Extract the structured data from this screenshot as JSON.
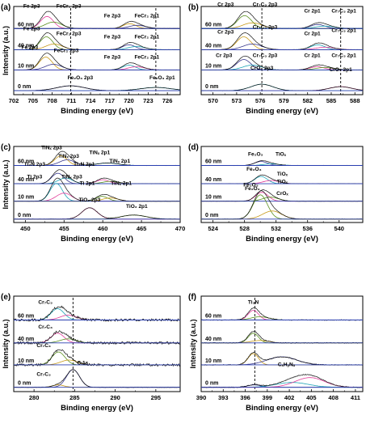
{
  "figure": {
    "ylabel": "Intensity (a.u.)",
    "xlabel": "Binding energy (eV)"
  },
  "chart_data": [
    {
      "panel": "(a)",
      "type": "line",
      "xlabel": "Binding energy (eV)",
      "ylabel": "Intensity (a.u.)",
      "xlim": [
        702,
        728
      ],
      "xticks": [
        702,
        705,
        708,
        711,
        714,
        717,
        720,
        723,
        726
      ],
      "reversed_x": false,
      "dashed_refs": [
        710.9,
        724.2
      ],
      "traces": [
        {
          "name": "60 nm",
          "label": "60 nm",
          "peaks": [
            {
              "x": 707.2,
              "w": 1.0,
              "h": 15
            },
            {
              "x": 708.2,
              "w": 1.3,
              "h": 8
            },
            {
              "x": 720.1,
              "w": 1.0,
              "h": 6
            },
            {
              "x": 721.3,
              "w": 1.3,
              "h": 4
            }
          ],
          "annotations": [
            {
              "text": "Fe 2p3",
              "x": 704.8,
              "y": 26
            },
            {
              "text": "FeCr₂ 2p3",
              "x": 710.6,
              "y": 26
            },
            {
              "text": "Fe 2p3",
              "x": 717.4,
              "y": 14
            },
            {
              "text": "FeCr₂ 2p1",
              "x": 722.8,
              "y": 14
            }
          ]
        },
        {
          "name": "40 nm",
          "label": "40 nm",
          "peaks": [
            {
              "x": 707.1,
              "w": 1.0,
              "h": 16
            },
            {
              "x": 708.3,
              "w": 1.3,
              "h": 7
            },
            {
              "x": 720.0,
              "w": 1.0,
              "h": 6
            },
            {
              "x": 721.2,
              "w": 1.3,
              "h": 4
            }
          ],
          "annotations": [
            {
              "text": "Fe 2p3",
              "x": 704.8,
              "y": 24
            },
            {
              "text": "FeCr₂ 2p3",
              "x": 710.6,
              "y": 18
            },
            {
              "text": "Fe 2p3",
              "x": 717.4,
              "y": 14
            },
            {
              "text": "FeCr₂ 2p1",
              "x": 722.8,
              "y": 14
            }
          ]
        },
        {
          "name": "10 nm",
          "label": "10 nm",
          "peaks": [
            {
              "x": 707.0,
              "w": 1.0,
              "h": 16
            },
            {
              "x": 708.2,
              "w": 1.3,
              "h": 7
            },
            {
              "x": 720.0,
              "w": 1.0,
              "h": 6
            },
            {
              "x": 721.2,
              "w": 1.3,
              "h": 4
            }
          ],
          "annotations": [
            {
              "text": "Fe 2p3",
              "x": 704.5,
              "y": 26
            },
            {
              "text": "FeCr₂ 2p3",
              "x": 710.2,
              "y": 22
            },
            {
              "text": "Fe 2p3",
              "x": 717.4,
              "y": 14
            },
            {
              "text": "FeCr₂ 2p1",
              "x": 722.8,
              "y": 14
            }
          ]
        },
        {
          "name": "0 nm",
          "label": "0 nm",
          "peaks": [
            {
              "x": 710.9,
              "w": 2.2,
              "h": 6
            },
            {
              "x": 724.2,
              "w": 2.4,
              "h": 4
            }
          ],
          "annotations": [
            {
              "text": "Fe₂O₃ 2p3",
              "x": 712.4,
              "y": 14
            },
            {
              "text": "Fe₂O₃ 2p1",
              "x": 725.2,
              "y": 14
            }
          ]
        }
      ]
    },
    {
      "panel": "(b)",
      "type": "line",
      "xlabel": "Binding energy (eV)",
      "ylabel": "",
      "xlim": [
        568.5,
        589
      ],
      "xticks": [
        570,
        573,
        576,
        579,
        582,
        585,
        588
      ],
      "reversed_x": false,
      "dashed_refs": [
        576.2,
        586.2
      ],
      "traces": [
        {
          "name": "60 nm",
          "label": "60 nm",
          "peaks": [
            {
              "x": 574.0,
              "w": 0.9,
              "h": 16
            },
            {
              "x": 575.0,
              "w": 1.2,
              "h": 7
            },
            {
              "x": 583.3,
              "w": 0.9,
              "h": 5
            },
            {
              "x": 584.2,
              "w": 1.2,
              "h": 3
            }
          ],
          "annotations": [
            {
              "text": "Cr 2p3",
              "x": 571.6,
              "y": 28
            },
            {
              "text": "Cr₇C₃ 2p3",
              "x": 576.6,
              "y": 28
            },
            {
              "text": "Cr 2p1",
              "x": 582.6,
              "y": 20
            },
            {
              "text": "Cr₇C₃ 2p1",
              "x": 586.6,
              "y": 20
            }
          ]
        },
        {
          "name": "40 nm",
          "label": "40 nm",
          "peaks": [
            {
              "x": 573.9,
              "w": 0.9,
              "h": 16
            },
            {
              "x": 575.0,
              "w": 1.2,
              "h": 7
            },
            {
              "x": 583.3,
              "w": 0.9,
              "h": 6
            },
            {
              "x": 584.2,
              "w": 1.2,
              "h": 3
            }
          ],
          "annotations": [
            {
              "text": "Cr 2p3",
              "x": 571.6,
              "y": 20
            },
            {
              "text": "Cr₇C₃ 2p3",
              "x": 576.6,
              "y": 26
            },
            {
              "text": "Cr 2p1",
              "x": 582.6,
              "y": 18
            },
            {
              "text": "Cr₇C₃ 2p1",
              "x": 586.6,
              "y": 22
            }
          ]
        },
        {
          "name": "10 nm",
          "label": "10 nm",
          "peaks": [
            {
              "x": 573.9,
              "w": 0.9,
              "h": 13
            },
            {
              "x": 575.0,
              "w": 1.2,
              "h": 6
            },
            {
              "x": 583.2,
              "w": 0.9,
              "h": 4
            },
            {
              "x": 584.2,
              "w": 1.2,
              "h": 3
            }
          ],
          "annotations": [
            {
              "text": "Cr 2p3",
              "x": 571.4,
              "y": 16
            },
            {
              "text": "Cr₇C₃ 2p3",
              "x": 576.6,
              "y": 16
            },
            {
              "text": "Cr 2p1",
              "x": 582.6,
              "y": 16
            },
            {
              "text": "Cr₇C₃ 2p1",
              "x": 586.6,
              "y": 16
            }
          ]
        },
        {
          "name": "0 nm",
          "label": "0 nm",
          "peaks": [
            {
              "x": 576.2,
              "w": 1.4,
              "h": 8
            },
            {
              "x": 586.2,
              "w": 1.4,
              "h": 5
            }
          ],
          "annotations": [
            {
              "text": "CrO₂ 2p3",
              "x": 576.2,
              "y": 26
            },
            {
              "text": "CrO₂ 2p1",
              "x": 586.2,
              "y": 24
            }
          ]
        }
      ]
    },
    {
      "panel": "(c)",
      "type": "line",
      "xlabel": "Binding energy (eV)",
      "ylabel": "Intensity (a.u.)",
      "xlim": [
        448.5,
        470
      ],
      "xticks": [
        450,
        455,
        460,
        465,
        470
      ],
      "reversed_x": false,
      "dashed_refs": [],
      "traces": [
        {
          "name": "60 nm",
          "label": "60 nm",
          "peaks": [
            {
              "x": 454.6,
              "w": 0.8,
              "h": 12
            },
            {
              "x": 455.4,
              "w": 1.0,
              "h": 7
            },
            {
              "x": 460.6,
              "w": 1.4,
              "h": 3
            }
          ],
          "annotations": [
            {
              "text": "TiNₓ 2p3",
              "x": 453.4,
              "y": 20
            },
            {
              "text": "TiNₓ 2p1",
              "x": 459.6,
              "y": 14
            }
          ]
        },
        {
          "name": "40 nm",
          "label": "40 nm",
          "peaks": [
            {
              "x": 454.2,
              "w": 0.8,
              "h": 13
            },
            {
              "x": 455.2,
              "w": 0.9,
              "h": 7
            },
            {
              "x": 460.0,
              "w": 0.8,
              "h": 5
            },
            {
              "x": 461.0,
              "w": 1.0,
              "h": 3
            }
          ],
          "annotations": [
            {
              "text": "Ti₂N 2p3",
              "x": 451.2,
              "y": 22
            },
            {
              "text": "TiNₓ 2p3",
              "x": 455.6,
              "y": 32
            },
            {
              "text": "Ti₂N 2p1",
              "x": 457.6,
              "y": 22
            },
            {
              "text": "TiNₓ 2p1",
              "x": 462.2,
              "y": 26
            }
          ]
        },
        {
          "name": "10 nm",
          "label": "10 nm",
          "peaks": [
            {
              "x": 454.0,
              "w": 0.8,
              "h": 22
            },
            {
              "x": 455.0,
              "w": 1.0,
              "h": 10
            },
            {
              "x": 459.9,
              "w": 0.8,
              "h": 6
            },
            {
              "x": 461.0,
              "w": 1.0,
              "h": 4
            }
          ],
          "annotations": [
            {
              "text": "Ti 2p3",
              "x": 451.2,
              "y": 28
            },
            {
              "text": "TiNₓ 2p3",
              "x": 456.0,
              "y": 28
            },
            {
              "text": "Ti 2p1",
              "x": 458.0,
              "y": 20
            },
            {
              "text": "TiNₓ 2p1",
              "x": 462.4,
              "y": 20
            }
          ]
        },
        {
          "name": "0 nm",
          "label": "0 nm",
          "peaks": [
            {
              "x": 458.3,
              "w": 1.0,
              "h": 14
            },
            {
              "x": 464.0,
              "w": 1.6,
              "h": 5
            }
          ],
          "annotations": [
            {
              "text": "TiO₂ 2p3",
              "x": 458.3,
              "y": 22
            },
            {
              "text": "TiO₂ 2p1",
              "x": 464.4,
              "y": 14
            }
          ]
        }
      ]
    },
    {
      "panel": "(d)",
      "type": "line",
      "xlabel": "Binding energy (eV)",
      "ylabel": "",
      "xlim": [
        522.5,
        543
      ],
      "xticks": [
        524,
        528,
        532,
        536,
        540
      ],
      "reversed_x": false,
      "dashed_refs": [],
      "traces": [
        {
          "name": "60 nm",
          "label": "60 nm",
          "peaks": [
            {
              "x": 530.1,
              "w": 0.8,
              "h": 5
            },
            {
              "x": 531.4,
              "w": 1.0,
              "h": 2
            }
          ],
          "annotations": [
            {
              "text": "Fe₂O₃",
              "x": 529.4,
              "y": 12
            },
            {
              "text": "TiOₓ",
              "x": 532.6,
              "y": 12
            }
          ]
        },
        {
          "name": "40 nm",
          "label": "40 nm",
          "peaks": [
            {
              "x": 530.1,
              "w": 0.8,
              "h": 9
            },
            {
              "x": 531.4,
              "w": 1.0,
              "h": 4
            }
          ],
          "annotations": [
            {
              "text": "Fe₂O₃",
              "x": 529.2,
              "y": 16
            },
            {
              "text": "TiOₓ",
              "x": 532.8,
              "y": 10
            }
          ]
        },
        {
          "name": "10 nm",
          "label": "10 nm",
          "peaks": [
            {
              "x": 530.2,
              "w": 0.8,
              "h": 11
            },
            {
              "x": 531.3,
              "w": 1.0,
              "h": 5
            }
          ],
          "annotations": [
            {
              "text": "Fe₂O₃",
              "x": 528.8,
              "y": 18
            },
            {
              "text": "TiOₓ",
              "x": 532.8,
              "y": 22
            }
          ]
        },
        {
          "name": "0 nm",
          "label": "0 nm",
          "peaks": [
            {
              "x": 530.0,
              "w": 0.9,
              "h": 30
            },
            {
              "x": 531.5,
              "w": 1.2,
              "h": 10
            }
          ],
          "annotations": [
            {
              "text": "Fe₂O₃",
              "x": 529.0,
              "y": 36
            },
            {
              "text": "CrOₓ",
              "x": 532.8,
              "y": 30
            }
          ]
        }
      ]
    },
    {
      "panel": "(e)",
      "type": "line",
      "xlabel": "Binding energy (eV)",
      "ylabel": "Intensity (a.u.)",
      "xlim": [
        277.5,
        298
      ],
      "xticks": [
        280,
        285,
        290,
        295
      ],
      "reversed_x": false,
      "dashed_refs": [
        284.8
      ],
      "traces": [
        {
          "name": "60 nm",
          "label": "60 nm",
          "noise": 0.25,
          "peaks": [
            {
              "x": 282.9,
              "w": 0.8,
              "h": 14
            },
            {
              "x": 284.2,
              "w": 1.0,
              "h": 6
            }
          ],
          "annotations": [
            {
              "text": "Cr₇C₃",
              "x": 281.4,
              "y": 20
            }
          ]
        },
        {
          "name": "40 nm",
          "label": "40 nm",
          "noise": 0.25,
          "peaks": [
            {
              "x": 282.9,
              "w": 0.8,
              "h": 12
            },
            {
              "x": 284.2,
              "w": 1.0,
              "h": 5
            }
          ],
          "annotations": [
            {
              "text": "Cr₇C₃",
              "x": 281.4,
              "y": 18
            }
          ]
        },
        {
          "name": "10 nm",
          "label": "10 nm",
          "noise": 0.25,
          "peaks": [
            {
              "x": 283.0,
              "w": 0.8,
              "h": 16
            },
            {
              "x": 284.3,
              "w": 1.0,
              "h": 6
            }
          ],
          "annotations": [
            {
              "text": "Cr₇C₃",
              "x": 281.2,
              "y": 22
            }
          ]
        },
        {
          "name": "0 nm",
          "label": "0 nm",
          "noise": 0.05,
          "peaks": [
            {
              "x": 283.0,
              "w": 0.7,
              "h": 3
            },
            {
              "x": 284.8,
              "w": 0.8,
              "h": 22
            }
          ],
          "annotations": [
            {
              "text": "Cr₇C₃",
              "x": 281.2,
              "y": 14
            },
            {
              "text": "C 1s",
              "x": 286.0,
              "y": 28
            }
          ]
        }
      ]
    },
    {
      "panel": "(f)",
      "type": "line",
      "xlabel": "Binding energy (eV)",
      "ylabel": "Intensity (a.u.)",
      "xlim": [
        390,
        412
      ],
      "xticks": [
        390,
        393,
        396,
        399,
        402,
        405,
        408,
        411
      ],
      "reversed_x": false,
      "dashed_refs": [
        397.3
      ],
      "traces": [
        {
          "name": "60 nm",
          "label": "60 nm",
          "noise": 0.08,
          "peaks": [
            {
              "x": 397.1,
              "w": 0.7,
              "h": 12
            },
            {
              "x": 398.0,
              "w": 1.2,
              "h": 4
            }
          ],
          "annotations": [
            {
              "text": "Ti₂N",
              "x": 397.1,
              "y": 20
            }
          ]
        },
        {
          "name": "40 nm",
          "label": "40 nm",
          "noise": 0.08,
          "peaks": [
            {
              "x": 397.1,
              "w": 0.7,
              "h": 12
            },
            {
              "x": 398.0,
              "w": 1.2,
              "h": 3
            }
          ],
          "annotations": []
        },
        {
          "name": "10 nm",
          "label": "10 nm",
          "noise": 0.08,
          "peaks": [
            {
              "x": 397.1,
              "w": 0.7,
              "h": 14
            },
            {
              "x": 401.0,
              "w": 2.0,
              "h": 10
            }
          ],
          "annotations": []
        },
        {
          "name": "0 nm",
          "label": "0 nm",
          "noise": 0.08,
          "peaks": [
            {
              "x": 397.2,
              "w": 0.9,
              "h": 3
            },
            {
              "x": 402.4,
              "w": 2.2,
              "h": 6
            },
            {
              "x": 404.8,
              "w": 2.0,
              "h": 12
            }
          ],
          "annotations": [
            {
              "text": "CₓHᵧNᵤ",
              "x": 401.6,
              "y": 26
            }
          ]
        }
      ]
    }
  ]
}
